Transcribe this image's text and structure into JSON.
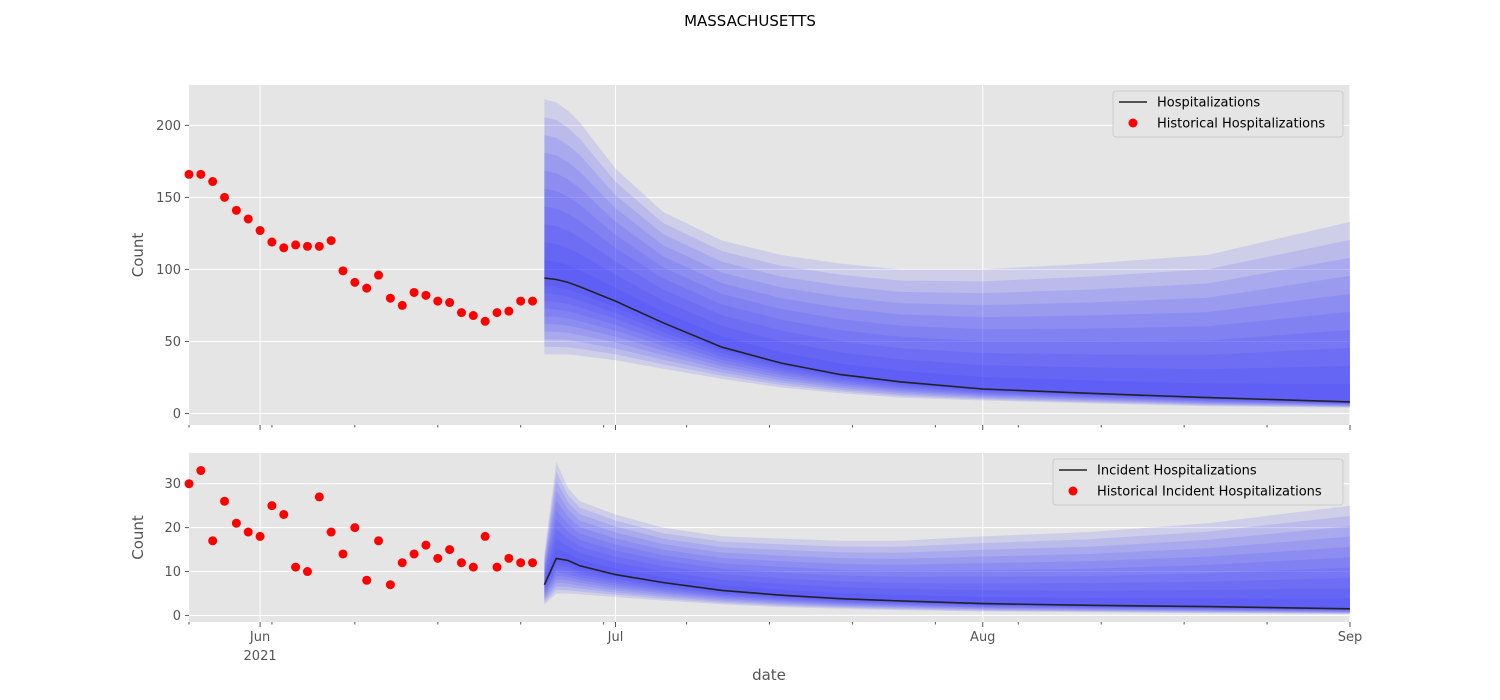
{
  "figure": {
    "title": "MASSACHUSETTS",
    "xlabel": "date"
  },
  "colors": {
    "panel_background": "#e5e5e5",
    "grid": "#ffffff",
    "band": "#3333ff",
    "median_line": "#222222",
    "historical_points": "#ff0000"
  },
  "chart_data": [
    {
      "type": "line",
      "title": "",
      "xlabel": "date",
      "ylabel": "Count",
      "ylim": [
        -8,
        228
      ],
      "xlim": [
        "2021-05-26",
        "2021-09-01"
      ],
      "x_ticks": [
        {
          "date": "2021-06-01",
          "label": "Jun",
          "sublabel": "2021"
        },
        {
          "date": "2021-07-01",
          "label": "Jul",
          "sublabel": ""
        },
        {
          "date": "2021-08-01",
          "label": "Aug",
          "sublabel": ""
        },
        {
          "date": "2021-09-01",
          "label": "Sep",
          "sublabel": ""
        }
      ],
      "y_ticks": [
        0,
        50,
        100,
        150,
        200
      ],
      "grid": true,
      "legend_position": "top-right",
      "legend": [
        "Hospitalizations",
        "Historical Hospitalizations"
      ],
      "historical": {
        "name": "Historical Hospitalizations",
        "start_date": "2021-05-26",
        "values": [
          166,
          166,
          161,
          150,
          141,
          135,
          127,
          119,
          115,
          117,
          116,
          116,
          120,
          99,
          91,
          87,
          96,
          80,
          75,
          84,
          82,
          78,
          77,
          70,
          68,
          64,
          70,
          71,
          78,
          78
        ]
      },
      "forecast": {
        "name": "Hospitalizations",
        "x": [
          "2021-06-25",
          "2021-06-26",
          "2021-06-27",
          "2021-06-28",
          "2021-07-01",
          "2021-07-05",
          "2021-07-10",
          "2021-07-15",
          "2021-07-20",
          "2021-07-25",
          "2021-08-01",
          "2021-08-10",
          "2021-08-20",
          "2021-09-01"
        ],
        "median": [
          94,
          93,
          91,
          88,
          78,
          63,
          46,
          35,
          27,
          22,
          17,
          14,
          11,
          8
        ],
        "band_outer_upper": [
          218,
          216,
          210,
          202,
          170,
          140,
          120,
          110,
          104,
          100,
          100,
          104,
          110,
          133
        ],
        "band_outer_lower": [
          41,
          41,
          41,
          40,
          37,
          31,
          24,
          18,
          14,
          11,
          9,
          7,
          5,
          4
        ],
        "band_levels": 10
      }
    },
    {
      "type": "line",
      "title": "",
      "xlabel": "date",
      "ylabel": "Count",
      "ylim": [
        -1.5,
        37
      ],
      "xlim": [
        "2021-05-26",
        "2021-09-01"
      ],
      "x_ticks": [
        {
          "date": "2021-06-01",
          "label": "Jun",
          "sublabel": "2021"
        },
        {
          "date": "2021-07-01",
          "label": "Jul",
          "sublabel": ""
        },
        {
          "date": "2021-08-01",
          "label": "Aug",
          "sublabel": ""
        },
        {
          "date": "2021-09-01",
          "label": "Sep",
          "sublabel": ""
        }
      ],
      "y_ticks": [
        0,
        10,
        20,
        30
      ],
      "grid": true,
      "legend_position": "top-right",
      "legend": [
        "Incident Hospitalizations",
        "Historical Incident Hospitalizations"
      ],
      "historical": {
        "name": "Historical Incident Hospitalizations",
        "start_date": "2021-05-26",
        "values": [
          30,
          33,
          17,
          26,
          21,
          19,
          18,
          25,
          23,
          11,
          10,
          27,
          19,
          14,
          20,
          8,
          17,
          7,
          12,
          14,
          16,
          13,
          15,
          12,
          11,
          18,
          11,
          13,
          12,
          12
        ]
      },
      "forecast": {
        "name": "Incident Hospitalizations",
        "x": [
          "2021-06-25",
          "2021-06-26",
          "2021-06-27",
          "2021-06-28",
          "2021-07-01",
          "2021-07-05",
          "2021-07-10",
          "2021-07-15",
          "2021-07-20",
          "2021-07-25",
          "2021-08-01",
          "2021-08-10",
          "2021-08-20",
          "2021-09-01"
        ],
        "median": [
          7,
          13,
          12.5,
          11.3,
          9.3,
          7.5,
          5.7,
          4.6,
          3.8,
          3.3,
          2.7,
          2.3,
          2.0,
          1.5
        ],
        "band_outer_upper": [
          14,
          35,
          29,
          26,
          23,
          20,
          18,
          17.5,
          17,
          17,
          18,
          19,
          21,
          25
        ],
        "band_outer_lower": [
          2.5,
          5,
          5,
          4.8,
          4.2,
          3.4,
          2.5,
          1.9,
          1.5,
          1.2,
          0.9,
          0.7,
          0.5,
          0.3
        ],
        "band_levels": 10
      }
    }
  ]
}
